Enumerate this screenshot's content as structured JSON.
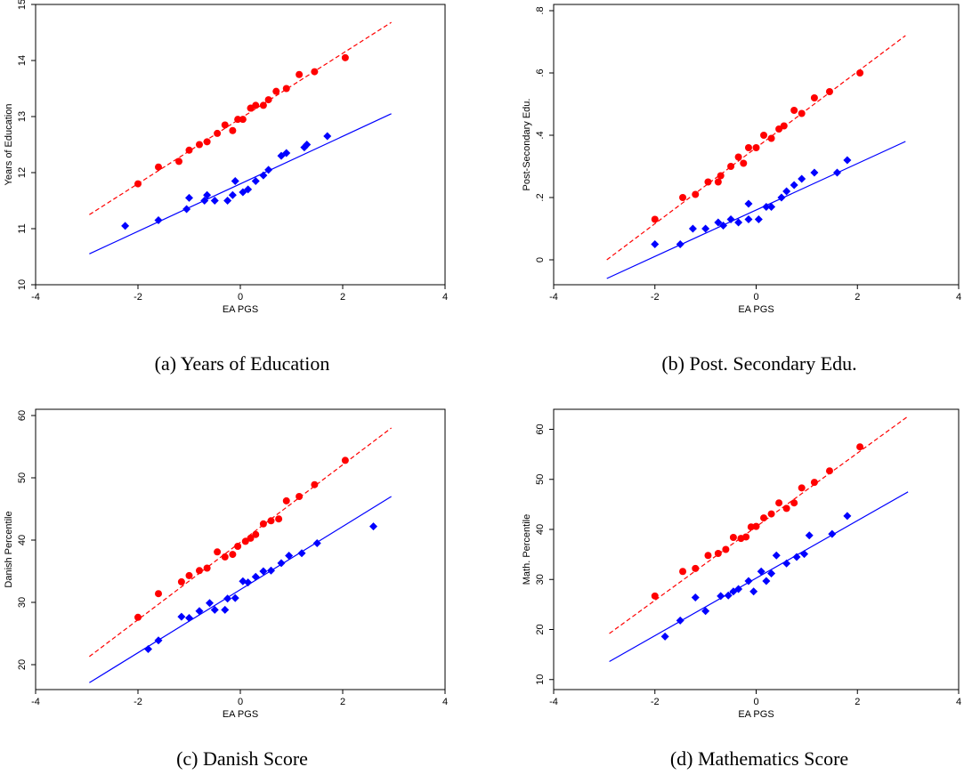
{
  "colors": {
    "red_series": "#ff0000",
    "blue_series": "#0000ff",
    "axis": "#000000"
  },
  "chart_data": [
    {
      "type": "scatter",
      "caption": "(a) Years of Education",
      "xlabel": "EA PGS",
      "ylabel": "Years of Education",
      "xlim": [
        -4,
        4
      ],
      "ylim": [
        10,
        15
      ],
      "xticks": [
        -4,
        -2,
        0,
        2,
        4
      ],
      "xtick_labels": [
        "-4",
        "-2",
        "0",
        "2",
        "4"
      ],
      "yticks": [
        10,
        11,
        12,
        13,
        14,
        15
      ],
      "ytick_labels": [
        "10",
        "11",
        "12",
        "13",
        "14",
        "15"
      ],
      "grid": false,
      "series": [
        {
          "marker": "circle",
          "color": "#ff0000",
          "line_style": "dashed",
          "fit_line": [
            [
              -2.95,
              11.25
            ],
            [
              2.95,
              14.68
            ]
          ],
          "points": [
            [
              -2.0,
              11.8
            ],
            [
              -1.6,
              12.1
            ],
            [
              -1.2,
              12.2
            ],
            [
              -1.0,
              12.4
            ],
            [
              -0.8,
              12.5
            ],
            [
              -0.65,
              12.55
            ],
            [
              -0.45,
              12.7
            ],
            [
              -0.3,
              12.85
            ],
            [
              -0.15,
              12.75
            ],
            [
              -0.05,
              12.95
            ],
            [
              0.05,
              12.95
            ],
            [
              0.2,
              13.15
            ],
            [
              0.3,
              13.2
            ],
            [
              0.45,
              13.2
            ],
            [
              0.55,
              13.3
            ],
            [
              0.7,
              13.45
            ],
            [
              0.9,
              13.5
            ],
            [
              1.15,
              13.75
            ],
            [
              1.45,
              13.8
            ],
            [
              2.05,
              14.05
            ]
          ]
        },
        {
          "marker": "diamond",
          "color": "#0000ff",
          "line_style": "solid",
          "fit_line": [
            [
              -2.95,
              10.55
            ],
            [
              2.95,
              13.05
            ]
          ],
          "points": [
            [
              -2.25,
              11.05
            ],
            [
              -1.6,
              11.15
            ],
            [
              -1.05,
              11.35
            ],
            [
              -1.0,
              11.55
            ],
            [
              -0.7,
              11.5
            ],
            [
              -0.65,
              11.6
            ],
            [
              -0.5,
              11.5
            ],
            [
              -0.25,
              11.5
            ],
            [
              -0.15,
              11.6
            ],
            [
              -0.1,
              11.85
            ],
            [
              0.05,
              11.65
            ],
            [
              0.15,
              11.7
            ],
            [
              0.3,
              11.85
            ],
            [
              0.45,
              11.95
            ],
            [
              0.55,
              12.05
            ],
            [
              0.8,
              12.3
            ],
            [
              0.9,
              12.35
            ],
            [
              1.25,
              12.45
            ],
            [
              1.3,
              12.5
            ],
            [
              1.7,
              12.65
            ]
          ]
        }
      ]
    },
    {
      "type": "scatter",
      "caption": "(b) Post. Secondary Edu.",
      "xlabel": "EA PGS",
      "ylabel": "Post-Secondary Edu.",
      "xlim": [
        -4,
        4
      ],
      "ylim": [
        -0.08,
        0.82
      ],
      "xticks": [
        -4,
        -2,
        0,
        2,
        4
      ],
      "xtick_labels": [
        "-4",
        "-2",
        "0",
        "2",
        "4"
      ],
      "yticks": [
        0,
        0.2,
        0.4,
        0.6,
        0.8
      ],
      "ytick_labels": [
        "0",
        ".2",
        ".4",
        ".6",
        ".8"
      ],
      "grid": false,
      "series": [
        {
          "marker": "circle",
          "color": "#ff0000",
          "line_style": "dashed",
          "fit_line": [
            [
              -2.95,
              0.0
            ],
            [
              2.95,
              0.72
            ]
          ],
          "points": [
            [
              -2.0,
              0.13
            ],
            [
              -1.45,
              0.2
            ],
            [
              -1.2,
              0.21
            ],
            [
              -0.95,
              0.25
            ],
            [
              -0.75,
              0.25
            ],
            [
              -0.7,
              0.27
            ],
            [
              -0.5,
              0.3
            ],
            [
              -0.35,
              0.33
            ],
            [
              -0.25,
              0.31
            ],
            [
              -0.15,
              0.36
            ],
            [
              0.0,
              0.36
            ],
            [
              0.15,
              0.4
            ],
            [
              0.3,
              0.39
            ],
            [
              0.45,
              0.42
            ],
            [
              0.55,
              0.43
            ],
            [
              0.75,
              0.48
            ],
            [
              0.9,
              0.47
            ],
            [
              1.15,
              0.52
            ],
            [
              1.45,
              0.54
            ],
            [
              2.05,
              0.6
            ]
          ]
        },
        {
          "marker": "diamond",
          "color": "#0000ff",
          "line_style": "solid",
          "fit_line": [
            [
              -2.95,
              -0.06
            ],
            [
              2.95,
              0.38
            ]
          ],
          "points": [
            [
              -2.0,
              0.05
            ],
            [
              -1.5,
              0.05
            ],
            [
              -1.25,
              0.1
            ],
            [
              -1.0,
              0.1
            ],
            [
              -0.75,
              0.12
            ],
            [
              -0.65,
              0.11
            ],
            [
              -0.5,
              0.13
            ],
            [
              -0.35,
              0.12
            ],
            [
              -0.15,
              0.18
            ],
            [
              -0.15,
              0.13
            ],
            [
              0.05,
              0.13
            ],
            [
              0.2,
              0.17
            ],
            [
              0.3,
              0.17
            ],
            [
              0.5,
              0.2
            ],
            [
              0.6,
              0.22
            ],
            [
              0.75,
              0.24
            ],
            [
              0.9,
              0.26
            ],
            [
              1.15,
              0.28
            ],
            [
              1.6,
              0.28
            ],
            [
              1.8,
              0.32
            ]
          ]
        }
      ]
    },
    {
      "type": "scatter",
      "caption": "(c) Danish Score",
      "xlabel": "EA PGS",
      "ylabel": "Danish Percentile",
      "xlim": [
        -4,
        4
      ],
      "ylim": [
        16,
        61
      ],
      "xticks": [
        -4,
        -2,
        0,
        2,
        4
      ],
      "xtick_labels": [
        "-4",
        "-2",
        "0",
        "2",
        "4"
      ],
      "yticks": [
        20,
        30,
        40,
        50,
        60
      ],
      "ytick_labels": [
        "20",
        "30",
        "40",
        "50",
        "60"
      ],
      "grid": false,
      "series": [
        {
          "marker": "circle",
          "color": "#ff0000",
          "line_style": "dashed",
          "fit_line": [
            [
              -2.95,
              21.3
            ],
            [
              2.95,
              58.0
            ]
          ],
          "points": [
            [
              -2.0,
              27.6
            ],
            [
              -1.6,
              31.4
            ],
            [
              -1.15,
              33.3
            ],
            [
              -1.0,
              34.3
            ],
            [
              -0.8,
              35.1
            ],
            [
              -0.65,
              35.5
            ],
            [
              -0.45,
              38.1
            ],
            [
              -0.3,
              37.3
            ],
            [
              -0.15,
              37.7
            ],
            [
              -0.05,
              39.0
            ],
            [
              0.1,
              39.8
            ],
            [
              0.2,
              40.3
            ],
            [
              0.3,
              40.9
            ],
            [
              0.45,
              42.6
            ],
            [
              0.6,
              43.1
            ],
            [
              0.75,
              43.4
            ],
            [
              0.9,
              46.3
            ],
            [
              1.15,
              47.0
            ],
            [
              1.45,
              48.9
            ],
            [
              2.05,
              52.8
            ]
          ]
        },
        {
          "marker": "diamond",
          "color": "#0000ff",
          "line_style": "solid",
          "fit_line": [
            [
              -2.95,
              17.1
            ],
            [
              2.95,
              47.0
            ]
          ],
          "points": [
            [
              -1.8,
              22.5
            ],
            [
              -1.6,
              23.9
            ],
            [
              -1.15,
              27.7
            ],
            [
              -1.0,
              27.5
            ],
            [
              -0.8,
              28.6
            ],
            [
              -0.6,
              29.9
            ],
            [
              -0.5,
              28.8
            ],
            [
              -0.3,
              28.8
            ],
            [
              -0.25,
              30.6
            ],
            [
              -0.1,
              30.7
            ],
            [
              0.05,
              33.4
            ],
            [
              0.15,
              33.2
            ],
            [
              0.3,
              34.1
            ],
            [
              0.45,
              35.0
            ],
            [
              0.6,
              35.1
            ],
            [
              0.8,
              36.3
            ],
            [
              0.95,
              37.5
            ],
            [
              1.2,
              37.9
            ],
            [
              1.5,
              39.5
            ],
            [
              2.6,
              42.2
            ]
          ]
        }
      ]
    },
    {
      "type": "scatter",
      "caption": "(d) Mathematics Score",
      "xlabel": "EA PGS",
      "ylabel": "Math. Percentile",
      "xlim": [
        -4,
        4
      ],
      "ylim": [
        8,
        64
      ],
      "xticks": [
        -4,
        -2,
        0,
        2,
        4
      ],
      "xtick_labels": [
        "-4",
        "-2",
        "0",
        "2",
        "4"
      ],
      "yticks": [
        10,
        20,
        30,
        40,
        50,
        60
      ],
      "ytick_labels": [
        "10",
        "20",
        "30",
        "40",
        "50",
        "60"
      ],
      "grid": false,
      "series": [
        {
          "marker": "circle",
          "color": "#ff0000",
          "line_style": "dashed",
          "fit_line": [
            [
              -2.9,
              19.2
            ],
            [
              3.0,
              62.6
            ]
          ],
          "points": [
            [
              -2.0,
              26.7
            ],
            [
              -1.45,
              31.6
            ],
            [
              -1.2,
              32.2
            ],
            [
              -0.95,
              34.8
            ],
            [
              -0.75,
              35.2
            ],
            [
              -0.6,
              36.0
            ],
            [
              -0.45,
              38.4
            ],
            [
              -0.3,
              38.2
            ],
            [
              -0.2,
              38.5
            ],
            [
              -0.1,
              40.5
            ],
            [
              0.0,
              40.6
            ],
            [
              0.15,
              42.3
            ],
            [
              0.3,
              43.1
            ],
            [
              0.45,
              45.3
            ],
            [
              0.6,
              44.2
            ],
            [
              0.75,
              45.3
            ],
            [
              0.9,
              48.3
            ],
            [
              1.15,
              49.4
            ],
            [
              1.45,
              51.7
            ],
            [
              2.05,
              56.5
            ]
          ]
        },
        {
          "marker": "diamond",
          "color": "#0000ff",
          "line_style": "solid",
          "fit_line": [
            [
              -2.9,
              13.6
            ],
            [
              3.0,
              47.5
            ]
          ],
          "points": [
            [
              -1.8,
              18.6
            ],
            [
              -1.5,
              21.8
            ],
            [
              -1.2,
              26.4
            ],
            [
              -1.0,
              23.7
            ],
            [
              -0.7,
              26.7
            ],
            [
              -0.55,
              26.8
            ],
            [
              -0.45,
              27.6
            ],
            [
              -0.35,
              28.1
            ],
            [
              -0.15,
              29.7
            ],
            [
              -0.05,
              27.6
            ],
            [
              0.1,
              31.6
            ],
            [
              0.2,
              29.7
            ],
            [
              0.3,
              31.2
            ],
            [
              0.4,
              34.8
            ],
            [
              0.6,
              33.2
            ],
            [
              0.8,
              34.5
            ],
            [
              0.95,
              35.1
            ],
            [
              1.05,
              38.8
            ],
            [
              1.5,
              39.1
            ],
            [
              1.8,
              42.7
            ]
          ]
        }
      ]
    }
  ]
}
